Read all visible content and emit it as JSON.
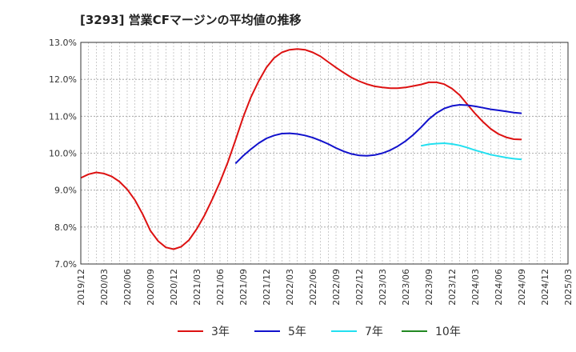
{
  "chart_data": {
    "type": "line",
    "title": "[3293]  営業CFマージンの平均値の推移",
    "xlabel": "",
    "ylabel": "",
    "ylim": [
      7.0,
      13.0
    ],
    "y_ticks": [
      "7.0%",
      "8.0%",
      "9.0%",
      "10.0%",
      "11.0%",
      "12.0%",
      "13.0%"
    ],
    "x_ticks": [
      "2019/12",
      "2020/03",
      "2020/06",
      "2020/09",
      "2020/12",
      "2021/03",
      "2021/06",
      "2021/09",
      "2021/12",
      "2022/03",
      "2022/06",
      "2022/09",
      "2022/12",
      "2023/03",
      "2023/06",
      "2023/09",
      "2023/12",
      "2024/03",
      "2024/06",
      "2024/09",
      "2024/12",
      "2025/03"
    ],
    "grid": true,
    "legend_position": "bottom",
    "series": [
      {
        "name": "3年",
        "color": "#dd1111",
        "points": [
          [
            "2019/12",
            9.33
          ],
          [
            "2020/01",
            9.43
          ],
          [
            "2020/02",
            9.48
          ],
          [
            "2020/03",
            9.45
          ],
          [
            "2020/04",
            9.37
          ],
          [
            "2020/05",
            9.23
          ],
          [
            "2020/06",
            9.02
          ],
          [
            "2020/07",
            8.73
          ],
          [
            "2020/08",
            8.35
          ],
          [
            "2020/09",
            7.9
          ],
          [
            "2020/10",
            7.62
          ],
          [
            "2020/11",
            7.45
          ],
          [
            "2020/12",
            7.4
          ],
          [
            "2021/01",
            7.47
          ],
          [
            "2021/02",
            7.65
          ],
          [
            "2021/03",
            7.95
          ],
          [
            "2021/04",
            8.32
          ],
          [
            "2021/05",
            8.75
          ],
          [
            "2021/06",
            9.22
          ],
          [
            "2021/07",
            9.75
          ],
          [
            "2021/08",
            10.35
          ],
          [
            "2021/09",
            10.98
          ],
          [
            "2021/10",
            11.52
          ],
          [
            "2021/11",
            11.95
          ],
          [
            "2021/12",
            12.32
          ],
          [
            "2022/01",
            12.58
          ],
          [
            "2022/02",
            12.73
          ],
          [
            "2022/03",
            12.8
          ],
          [
            "2022/04",
            12.82
          ],
          [
            "2022/05",
            12.8
          ],
          [
            "2022/06",
            12.73
          ],
          [
            "2022/07",
            12.62
          ],
          [
            "2022/08",
            12.47
          ],
          [
            "2022/09",
            12.32
          ],
          [
            "2022/10",
            12.18
          ],
          [
            "2022/11",
            12.05
          ],
          [
            "2022/12",
            11.95
          ],
          [
            "2023/01",
            11.87
          ],
          [
            "2023/02",
            11.81
          ],
          [
            "2023/03",
            11.78
          ],
          [
            "2023/04",
            11.76
          ],
          [
            "2023/05",
            11.76
          ],
          [
            "2023/06",
            11.78
          ],
          [
            "2023/07",
            11.82
          ],
          [
            "2023/08",
            11.86
          ],
          [
            "2023/09",
            11.92
          ],
          [
            "2023/10",
            11.92
          ],
          [
            "2023/11",
            11.87
          ],
          [
            "2023/12",
            11.75
          ],
          [
            "2024/01",
            11.57
          ],
          [
            "2024/02",
            11.32
          ],
          [
            "2024/03",
            11.07
          ],
          [
            "2024/04",
            10.85
          ],
          [
            "2024/05",
            10.66
          ],
          [
            "2024/06",
            10.52
          ],
          [
            "2024/07",
            10.43
          ],
          [
            "2024/08",
            10.38
          ],
          [
            "2024/09",
            10.37
          ]
        ]
      },
      {
        "name": "5年",
        "color": "#1111cc",
        "points": [
          [
            "2021/08",
            9.72
          ],
          [
            "2021/09",
            9.93
          ],
          [
            "2021/10",
            10.11
          ],
          [
            "2021/11",
            10.27
          ],
          [
            "2021/12",
            10.4
          ],
          [
            "2022/01",
            10.48
          ],
          [
            "2022/02",
            10.53
          ],
          [
            "2022/03",
            10.54
          ],
          [
            "2022/04",
            10.52
          ],
          [
            "2022/05",
            10.48
          ],
          [
            "2022/06",
            10.42
          ],
          [
            "2022/07",
            10.34
          ],
          [
            "2022/08",
            10.25
          ],
          [
            "2022/09",
            10.14
          ],
          [
            "2022/10",
            10.05
          ],
          [
            "2022/11",
            9.98
          ],
          [
            "2022/12",
            9.94
          ],
          [
            "2023/01",
            9.93
          ],
          [
            "2023/02",
            9.95
          ],
          [
            "2023/03",
            10.0
          ],
          [
            "2023/04",
            10.08
          ],
          [
            "2023/05",
            10.19
          ],
          [
            "2023/06",
            10.33
          ],
          [
            "2023/07",
            10.5
          ],
          [
            "2023/08",
            10.7
          ],
          [
            "2023/09",
            10.92
          ],
          [
            "2023/10",
            11.09
          ],
          [
            "2023/11",
            11.21
          ],
          [
            "2023/12",
            11.28
          ],
          [
            "2024/01",
            11.31
          ],
          [
            "2024/02",
            11.3
          ],
          [
            "2024/03",
            11.27
          ],
          [
            "2024/04",
            11.23
          ],
          [
            "2024/05",
            11.19
          ],
          [
            "2024/06",
            11.16
          ],
          [
            "2024/07",
            11.13
          ],
          [
            "2024/08",
            11.1
          ],
          [
            "2024/09",
            11.08
          ]
        ]
      },
      {
        "name": "7年",
        "color": "#22e0f0",
        "points": [
          [
            "2023/08",
            10.2
          ],
          [
            "2023/09",
            10.24
          ],
          [
            "2023/10",
            10.26
          ],
          [
            "2023/11",
            10.27
          ],
          [
            "2023/12",
            10.25
          ],
          [
            "2024/01",
            10.21
          ],
          [
            "2024/02",
            10.15
          ],
          [
            "2024/03",
            10.08
          ],
          [
            "2024/04",
            10.02
          ],
          [
            "2024/05",
            9.96
          ],
          [
            "2024/06",
            9.92
          ],
          [
            "2024/07",
            9.88
          ],
          [
            "2024/08",
            9.85
          ],
          [
            "2024/09",
            9.83
          ]
        ]
      },
      {
        "name": "10年",
        "color": "#228822",
        "points": []
      }
    ]
  }
}
